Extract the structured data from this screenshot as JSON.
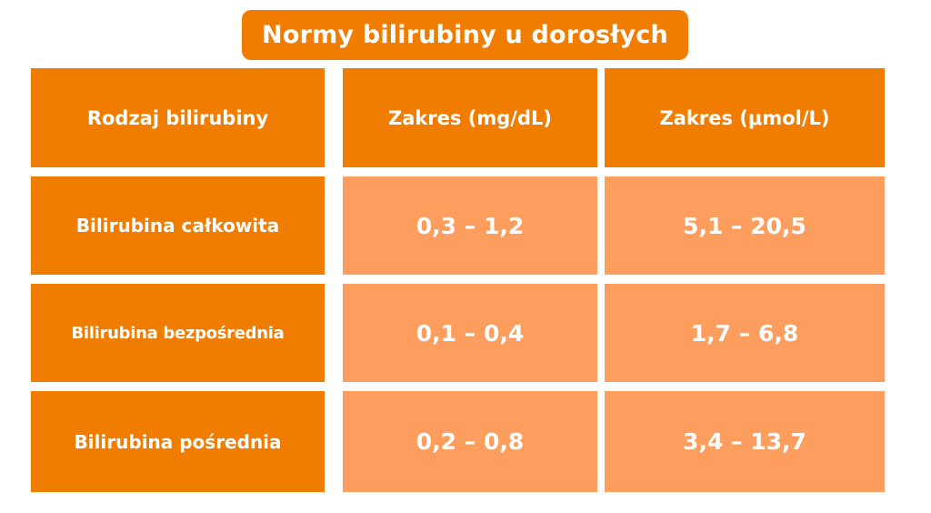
{
  "title": "Normy bilirubiny u dorosłych",
  "table": {
    "headers": [
      "Rodzaj bilirubiny",
      "Zakres (mg/dL)",
      "Zakres (μmol/L)"
    ],
    "rows": [
      {
        "type": "Bilirubina całkowita",
        "mg_dl": "0,3 – 1,2",
        "umol_l": "5,1 – 20,5"
      },
      {
        "type": "Bilirubina bezpośrednia",
        "mg_dl": "0,1 – 0,4",
        "umol_l": "1,7 – 6,8"
      },
      {
        "type": "Bilirubina pośrednia",
        "mg_dl": "0,2 – 0,8",
        "umol_l": "3,4 – 13,7"
      }
    ]
  },
  "colors": {
    "primary_orange": "#f07c00",
    "light_orange": "#fd9e5e",
    "text": "#ffffff"
  }
}
